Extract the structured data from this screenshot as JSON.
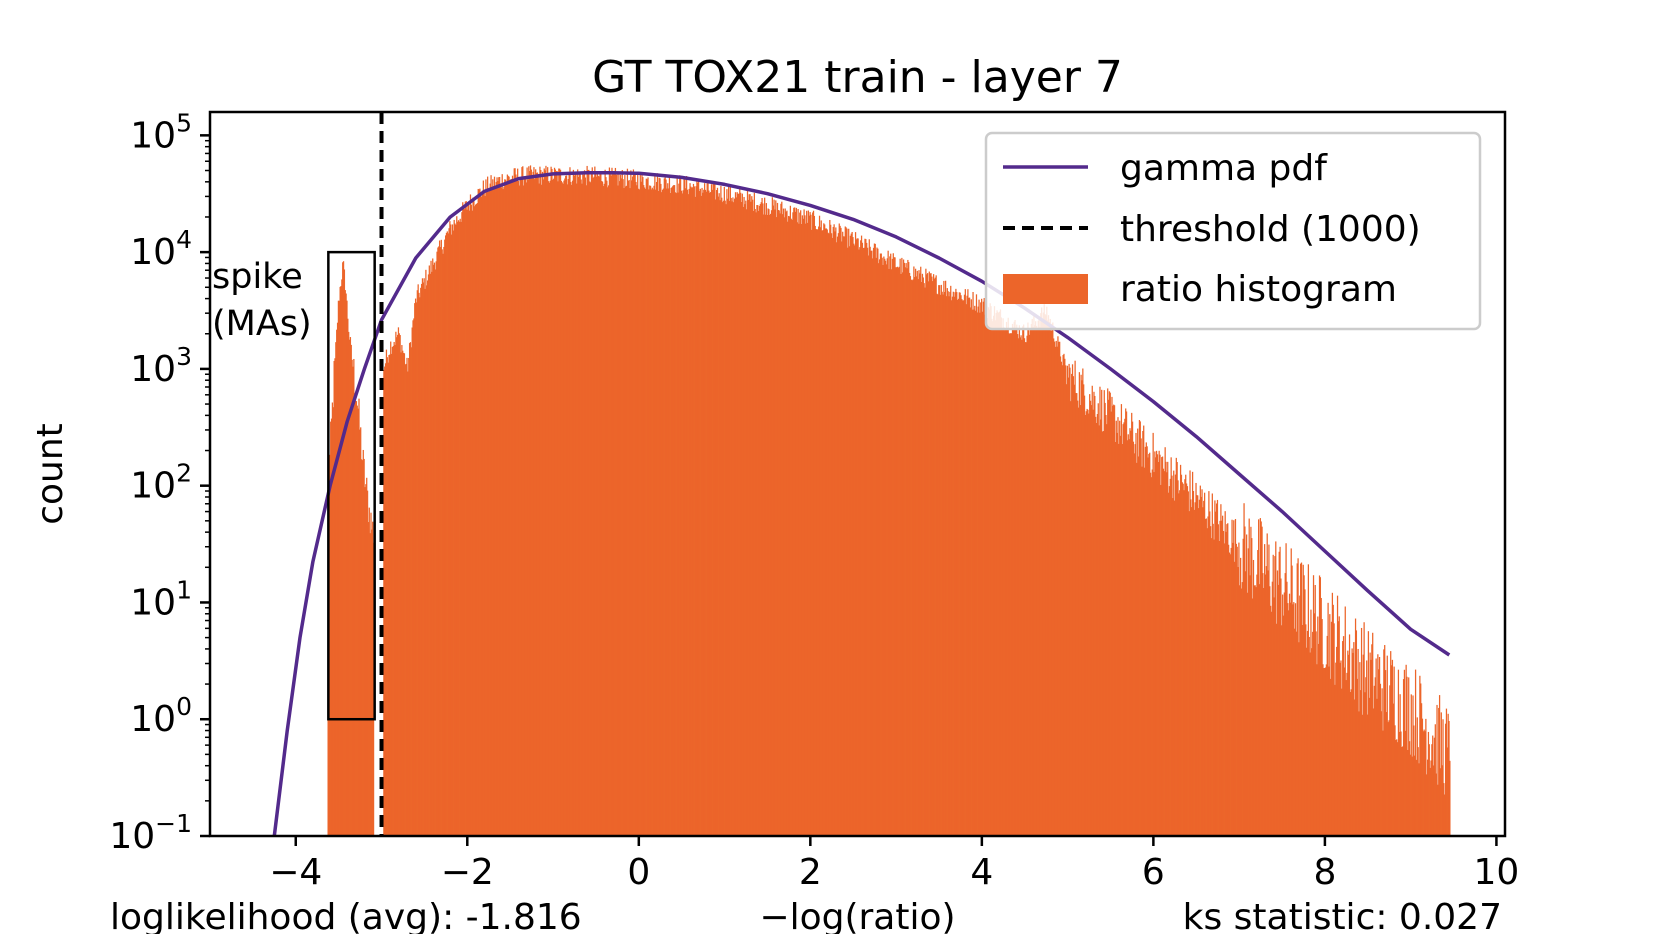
{
  "chart_data": {
    "type": "bar",
    "title": "GT TOX21 train - layer 7",
    "xlabel": "−log(ratio)",
    "ylabel": "count",
    "xlim": [
      -5,
      10.1
    ],
    "ylim_log10": [
      -1,
      5.2
    ],
    "yscale": "log",
    "x_ticks": [
      -4,
      -2,
      0,
      2,
      4,
      6,
      8,
      10
    ],
    "x_tick_labels": [
      "−4",
      "−2",
      "0",
      "2",
      "4",
      "6",
      "8",
      "10"
    ],
    "y_ticks_exp": [
      -1,
      0,
      1,
      2,
      3,
      4,
      5
    ],
    "y_tick_base": "10",
    "y_tick_exponents": [
      "−1",
      "0",
      "1",
      "2",
      "3",
      "4",
      "5"
    ],
    "threshold_x": -3.0,
    "legend": {
      "position": "upper right",
      "entries": [
        "gamma pdf",
        "threshold (1000)",
        "ratio histogram"
      ]
    },
    "annotation": {
      "text_line1": "spike",
      "text_line2": "(MAs)",
      "box_x": [
        -3.62,
        -3.08
      ],
      "box_y": [
        1,
        10000
      ]
    },
    "footer_left": "loglikelihood (avg): -1.816",
    "footer_right": "ks statistic: 0.027",
    "gamma_pdf": {
      "x": [
        -4.25,
        -4.1,
        -3.95,
        -3.8,
        -3.6,
        -3.4,
        -3.2,
        -3.0,
        -2.6,
        -2.2,
        -1.8,
        -1.4,
        -1.0,
        -0.6,
        -0.3,
        0.0,
        0.5,
        1.0,
        1.5,
        2.0,
        2.5,
        3.0,
        3.5,
        4.0,
        4.5,
        5.0,
        5.5,
        6.0,
        6.5,
        7.0,
        7.5,
        8.0,
        8.5,
        9.0,
        9.45
      ],
      "log10_y": [
        -1.0,
        -0.1,
        0.7,
        1.35,
        2.0,
        2.55,
        3.0,
        3.42,
        3.95,
        4.3,
        4.52,
        4.63,
        4.67,
        4.68,
        4.68,
        4.675,
        4.64,
        4.58,
        4.5,
        4.4,
        4.28,
        4.13,
        3.95,
        3.75,
        3.52,
        3.27,
        3.0,
        2.72,
        2.42,
        2.1,
        1.78,
        1.44,
        1.1,
        0.77,
        0.55
      ]
    },
    "histogram": {
      "bin_width": 0.01,
      "spike": {
        "x": [
          -3.63,
          -3.6,
          -3.55,
          -3.5,
          -3.45,
          -3.42,
          -3.38,
          -3.33,
          -3.28,
          -3.22,
          -3.15,
          -3.1
        ],
        "log10_y": [
          1.8,
          2.3,
          3.0,
          3.6,
          3.9,
          3.7,
          3.3,
          3.0,
          2.7,
          2.2,
          1.8,
          1.6
        ]
      },
      "gap_x": [
        -3.1,
        -2.98
      ],
      "main": {
        "x": [
          -2.98,
          -2.9,
          -2.8,
          -2.7,
          -2.6,
          -2.5,
          -2.4,
          -2.3,
          -2.2,
          -2.0,
          -1.8,
          -1.6,
          -1.4,
          -1.2,
          -1.0,
          -0.5,
          0.0,
          0.5,
          1.0,
          1.5,
          2.0,
          2.5,
          3.0,
          3.5,
          4.0,
          4.5,
          4.75,
          5.0,
          5.5,
          6.0,
          6.5,
          7.0,
          7.5,
          8.0,
          8.5,
          9.0,
          9.45
        ],
        "log10_y": [
          3.0,
          3.2,
          3.3,
          3.0,
          3.6,
          3.75,
          3.9,
          4.05,
          4.2,
          4.4,
          4.55,
          4.62,
          4.65,
          4.66,
          4.66,
          4.65,
          4.62,
          4.58,
          4.5,
          4.4,
          4.28,
          4.1,
          3.9,
          3.72,
          3.55,
          3.3,
          3.5,
          2.95,
          2.6,
          2.25,
          1.9,
          1.5,
          1.15,
          0.8,
          0.4,
          0.1,
          -0.3
        ]
      }
    },
    "colors": {
      "histogram": "#ec652a",
      "gamma_pdf": "#532a8c",
      "threshold": "#000000",
      "annotation_box": "#000000"
    }
  }
}
